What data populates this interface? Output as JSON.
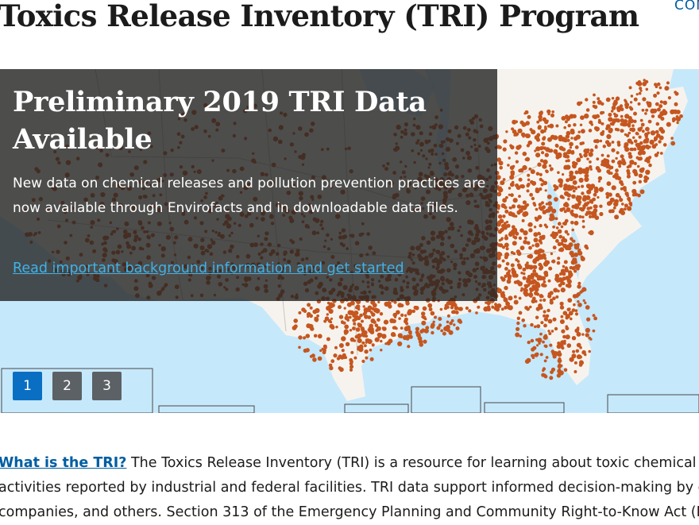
{
  "header": {
    "title": "Toxics Release Inventory (TRI) Program",
    "contact_link": "CON"
  },
  "carousel": {
    "slide_title": "Preliminary 2019 TRI Data Available",
    "slide_text": "New data on chemical releases and pollution prevention practices are now available through Envirofacts and in downloadable data files.",
    "slide_link": "Read important background information and get started",
    "slides": [
      "1",
      "2",
      "3"
    ],
    "active_slide": "1",
    "background_image": "us-facility-map"
  },
  "intro": {
    "link_label": "What is the TRI?",
    "line1_rest": "  The Toxics Release Inventory (TRI) is a resource for learning about toxic chemical re",
    "line2": "activities reported by industrial and federal facilities. TRI data support informed decision-making by co",
    "line3": "companies, and others. Section 313 of the Emergency Planning and Community Right-to-Know Act (EP"
  },
  "colors": {
    "dots": "#c5561f",
    "water": "#c6e8fb",
    "land": "#f6f3ee",
    "link": "#005ea2",
    "active_slide": "#0a6fc2"
  }
}
